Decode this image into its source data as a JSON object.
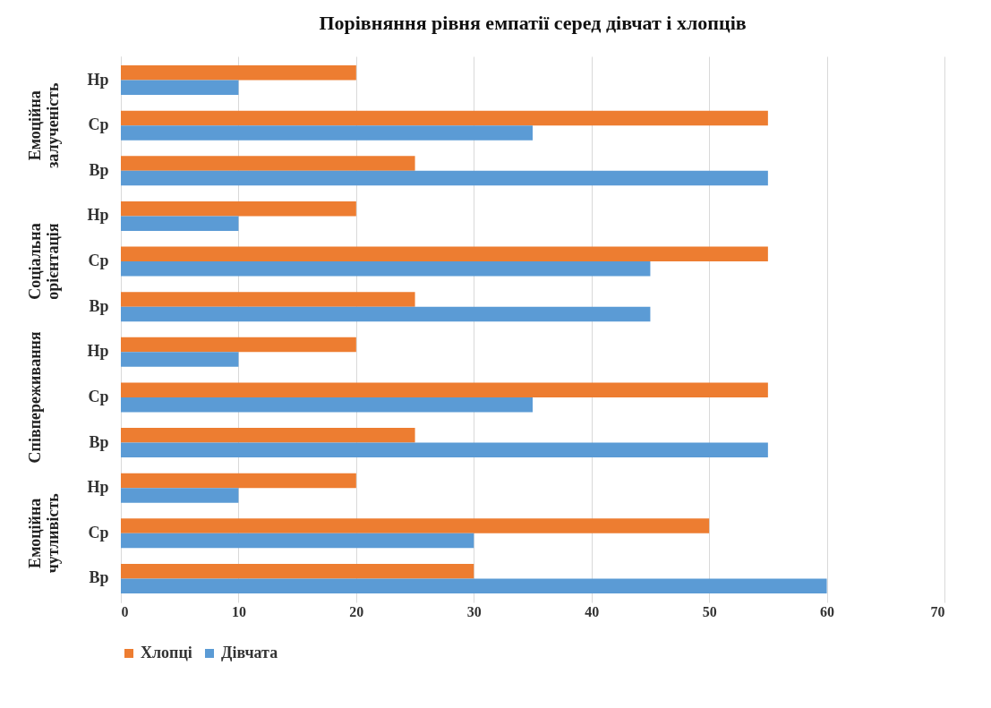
{
  "chart_data": {
    "type": "bar",
    "orientation": "horizontal",
    "title": "Порівняння рівня емпатії серед дівчат і хлопців",
    "categories": [
      "Нр",
      "Ср",
      "Вр",
      "Нр",
      "Ср",
      "Вр",
      "Нр",
      "Ср",
      "Вр",
      "Нр",
      "Ср",
      "Вр"
    ],
    "series": [
      {
        "name": "Хлопці",
        "color": "#ed7d31",
        "values": [
          20,
          55,
          25,
          20,
          55,
          25,
          20,
          55,
          25,
          20,
          50,
          30
        ]
      },
      {
        "name": "Дівчата",
        "color": "#5b9bd5",
        "values": [
          10,
          35,
          55,
          10,
          45,
          45,
          10,
          35,
          55,
          10,
          30,
          60
        ]
      }
    ],
    "annotations": [
      "Емоційна залученість",
      "Соціальна орієнтація",
      "Співпереживання",
      "Емоційна чутливість"
    ],
    "xlim": [
      0,
      70
    ],
    "xticks": [
      0,
      10,
      20,
      30,
      40,
      50,
      60,
      70
    ],
    "grid": "x",
    "legend": "bottom"
  }
}
